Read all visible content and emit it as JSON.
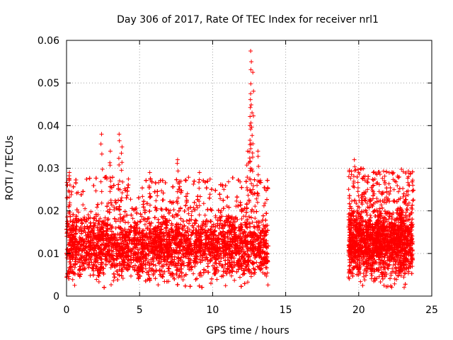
{
  "chart_data": {
    "type": "scatter",
    "title": "Day 306 of 2017, Rate Of TEC Index for receiver nrl1",
    "xlabel": "GPS time / hours",
    "ylabel": "ROTI / TECUs",
    "xlim": [
      0,
      25
    ],
    "ylim": [
      0,
      0.06
    ],
    "xticks": [
      0,
      5,
      10,
      15,
      20,
      25
    ],
    "xtick_labels": [
      "0",
      "5",
      "10",
      "15",
      "20",
      "25"
    ],
    "yticks": [
      0,
      0.01,
      0.02,
      0.03,
      0.04,
      0.05,
      0.06
    ],
    "ytick_labels": [
      "0",
      "0.01",
      "0.02",
      "0.03",
      "0.04",
      "0.05",
      "0.06"
    ],
    "grid": true,
    "marker": "+",
    "color": "#ff0000",
    "series": [
      {
        "name": "ROTI",
        "segments": [
          {
            "x_start": 0.0,
            "x_end": 13.8,
            "typical_range": [
              0.004,
              0.02
            ]
          },
          {
            "x_start": 19.3,
            "x_end": 23.7,
            "typical_range": [
              0.004,
              0.022
            ]
          }
        ],
        "peaks": [
          {
            "x": 0.2,
            "y": 0.029
          },
          {
            "x": 2.4,
            "y": 0.038
          },
          {
            "x": 3.0,
            "y": 0.034
          },
          {
            "x": 3.6,
            "y": 0.038
          },
          {
            "x": 3.8,
            "y": 0.035
          },
          {
            "x": 5.7,
            "y": 0.029
          },
          {
            "x": 7.6,
            "y": 0.032
          },
          {
            "x": 9.1,
            "y": 0.029
          },
          {
            "x": 12.4,
            "y": 0.034
          },
          {
            "x": 12.6,
            "y": 0.0575
          },
          {
            "x": 12.65,
            "y": 0.055
          },
          {
            "x": 12.75,
            "y": 0.0525
          },
          {
            "x": 12.6,
            "y": 0.0475
          },
          {
            "x": 12.7,
            "y": 0.043
          },
          {
            "x": 12.55,
            "y": 0.04
          },
          {
            "x": 13.1,
            "y": 0.034
          },
          {
            "x": 19.7,
            "y": 0.032
          },
          {
            "x": 20.0,
            "y": 0.029
          },
          {
            "x": 21.0,
            "y": 0.029
          },
          {
            "x": 23.4,
            "y": 0.028
          },
          {
            "x": 23.7,
            "y": 0.026
          }
        ]
      }
    ]
  }
}
